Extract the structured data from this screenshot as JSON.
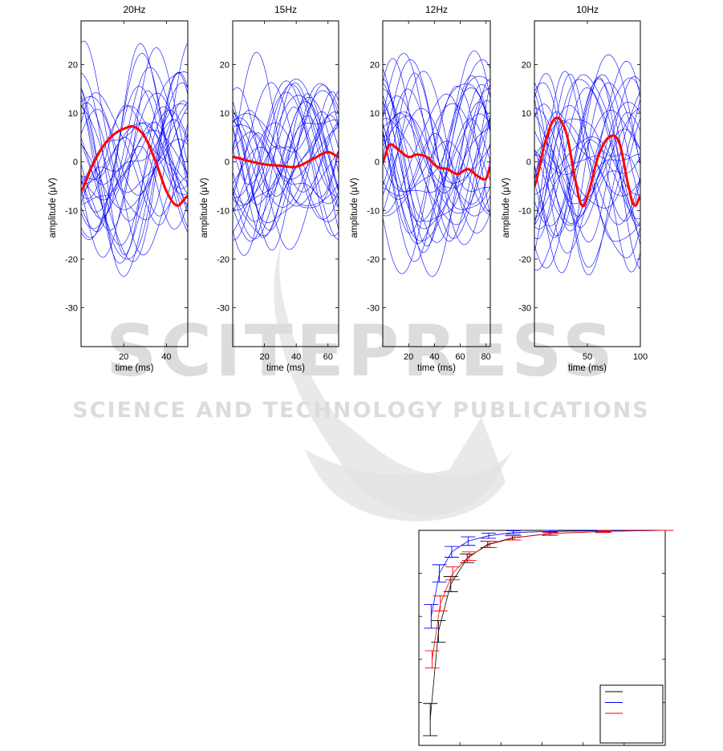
{
  "watermark": {
    "logo_text": "SCITEPRESS",
    "subtitle": "SCIENCE AND TECHNOLOGY PUBLICATIONS"
  },
  "colors": {
    "trials": "#0000ff",
    "mean": "#ff0000",
    "axis": "#000000",
    "watermark": "#dcdcdc",
    "legend_series": [
      "#000000",
      "#0000ff",
      "#ff0000"
    ]
  },
  "chart_data": [
    {
      "type": "line",
      "title": "20Hz",
      "xlabel": "time (ms)",
      "ylabel": "amplitude (μV)",
      "xlim": [
        0,
        50
      ],
      "ylim": [
        -38,
        29
      ],
      "xticks": [
        20,
        40
      ],
      "yticks": [
        -30,
        -20,
        -10,
        0,
        10,
        20
      ],
      "frequency_hz": 20,
      "trial_count": 30,
      "mean_series": {
        "x": [
          0,
          5,
          10,
          15,
          20,
          25,
          30,
          35,
          40,
          45,
          50
        ],
        "y": [
          -6,
          -1,
          3,
          5.5,
          6.8,
          7.2,
          5,
          0,
          -6,
          -9,
          -7
        ]
      }
    },
    {
      "type": "line",
      "title": "15Hz",
      "xlabel": "time (ms)",
      "ylabel": "amplitude (μV)",
      "xlim": [
        0,
        66.7
      ],
      "ylim": [
        -38,
        29
      ],
      "xticks": [
        20,
        40,
        60
      ],
      "yticks": [
        -30,
        -20,
        -10,
        0,
        10,
        20
      ],
      "frequency_hz": 15,
      "trial_count": 30,
      "mean_series": {
        "x": [
          0,
          10,
          20,
          30,
          40,
          50,
          60,
          66.7
        ],
        "y": [
          1,
          0.2,
          -0.5,
          -0.8,
          -1,
          0.5,
          2,
          1
        ]
      }
    },
    {
      "type": "line",
      "title": "12Hz",
      "xlabel": "time (ms)",
      "ylabel": "amplitude (μV)",
      "xlim": [
        0,
        83.3
      ],
      "ylim": [
        -38,
        29
      ],
      "xticks": [
        20,
        40,
        60,
        80
      ],
      "yticks": [
        -30,
        -20,
        -10,
        0,
        10,
        20
      ],
      "frequency_hz": 12,
      "trial_count": 30,
      "mean_series": {
        "x": [
          0,
          5,
          12,
          20,
          26,
          34,
          42,
          50,
          58,
          66,
          74,
          80,
          83.3
        ],
        "y": [
          0,
          3.5,
          2.5,
          1,
          1.5,
          1,
          -1,
          -1.5,
          -2.5,
          -1.5,
          -3,
          -3.5,
          -1
        ]
      }
    },
    {
      "type": "line",
      "title": "10Hz",
      "xlabel": "time (ms)",
      "ylabel": "amplitude (μV)",
      "xlim": [
        0,
        100
      ],
      "ylim": [
        -38,
        29
      ],
      "xticks": [
        50,
        100
      ],
      "yticks": [
        -30,
        -20,
        -10,
        0,
        10,
        20
      ],
      "frequency_hz": 10,
      "trial_count": 30,
      "mean_series": {
        "x": [
          0,
          10,
          20,
          30,
          40,
          45,
          50,
          60,
          70,
          80,
          90,
          95,
          100
        ],
        "y": [
          -5,
          4,
          9,
          6,
          -5,
          -9,
          -7,
          1,
          5,
          4,
          -6,
          -9,
          -7
        ]
      }
    },
    {
      "type": "line",
      "title": "",
      "xlabel": "",
      "ylabel": "",
      "xlim": [
        0,
        60
      ],
      "ylim": [
        0,
        1
      ],
      "grid": false,
      "legend": {
        "placement": "bottom-right",
        "entries": [
          "",
          "",
          ""
        ]
      },
      "series": [
        {
          "color": "#000000",
          "x": [
            3,
            5,
            8,
            12,
            17,
            23,
            32,
            45,
            60
          ],
          "y": [
            0.12,
            0.53,
            0.75,
            0.87,
            0.935,
            0.965,
            0.985,
            0.995,
            1.0
          ],
          "err": [
            0.075,
            0.05,
            0.035,
            0.02,
            0.015,
            0.01,
            0.008,
            0.005,
            0
          ]
        },
        {
          "color": "#0000ff",
          "x": [
            3,
            5,
            8,
            12,
            17,
            23,
            32,
            45,
            60
          ],
          "y": [
            0.6,
            0.8,
            0.9,
            0.95,
            0.975,
            0.99,
            0.995,
            0.998,
            1.0
          ],
          "err": [
            0.055,
            0.04,
            0.025,
            0.02,
            0.012,
            0.008,
            0.005,
            0.004,
            0
          ]
        },
        {
          "color": "#ff0000",
          "x": [
            3,
            5,
            8,
            12,
            17,
            23,
            32,
            45,
            60
          ],
          "y": [
            0.4,
            0.66,
            0.8,
            0.88,
            0.935,
            0.965,
            0.985,
            0.995,
            1.0
          ],
          "err": [
            0.04,
            0.035,
            0.03,
            0.02,
            0.015,
            0.01,
            0.007,
            0.005,
            0
          ]
        }
      ]
    }
  ]
}
